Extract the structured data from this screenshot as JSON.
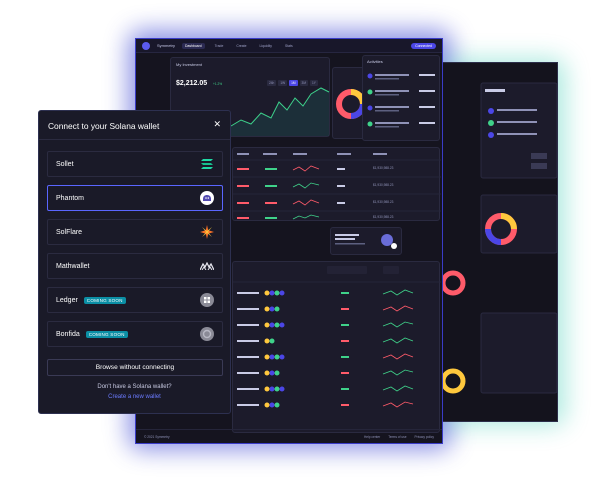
{
  "modal": {
    "title": "Connect to your Solana wallet",
    "close_icon": "close-icon",
    "wallets": [
      {
        "name": "Sollet",
        "badge": "",
        "icon": "sollet-icon"
      },
      {
        "name": "Phantom",
        "badge": "",
        "icon": "phantom-icon"
      },
      {
        "name": "SolFlare",
        "badge": "",
        "icon": "solflare-icon"
      },
      {
        "name": "Mathwallet",
        "badge": "",
        "icon": "mathwallet-icon"
      },
      {
        "name": "Ledger",
        "badge": "COMING SOON",
        "icon": "ledger-icon"
      },
      {
        "name": "Bonfida",
        "badge": "COMING SOON",
        "icon": "bonfida-icon"
      }
    ],
    "browse_label": "Browse without connecting",
    "no_wallet_text": "Don't have a Solana wallet?",
    "create_link": "Create a new wallet"
  },
  "dashboard": {
    "brand": "Symmetry",
    "nav": [
      "Dashboard",
      "Trade",
      "Create",
      "Liquidity",
      "Stats"
    ],
    "connect": "Connected",
    "section_title": "My Investment",
    "balance": "$2,212.05",
    "change": "+1.2%",
    "periods": [
      "24h",
      "1W",
      "1M",
      "3M",
      "1Y"
    ],
    "activities_title": "Activities",
    "table_values": [
      "$1,930,988.23",
      "$1,930,988.23",
      "$1,930,988.23",
      "$1,930,988.23"
    ],
    "footer_left": "© 2021 Symmetry",
    "footer_links": [
      "Help center",
      "Terms of use",
      "Privacy policy"
    ]
  },
  "colors": {
    "accent": "#4b46e6",
    "modal_bg": "#1a1a28",
    "selected_border": "#5a66ff",
    "badge": "#0b8fa5",
    "link": "#6b7bff"
  }
}
